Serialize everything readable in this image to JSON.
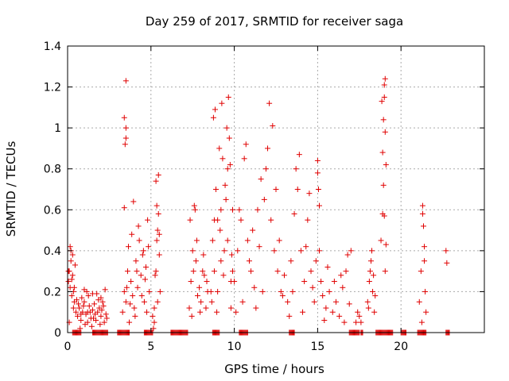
{
  "chart_data": {
    "type": "scatter",
    "title": "Day 259 of 2017, SRMTID for receiver saga",
    "xlabel": "GPS time / hours",
    "ylabel": "SRMTID / TECUs",
    "xlim": [
      0,
      25
    ],
    "ylim": [
      0,
      1.4
    ],
    "x_ticks": [
      "0",
      "5",
      "10",
      "15",
      "20"
    ],
    "y_ticks": [
      "0",
      "0.2",
      "0.4",
      "0.6",
      "0.8",
      "1",
      "1.2",
      "1.4"
    ],
    "grid": true,
    "marker": "+",
    "color": "#e00000",
    "series": [
      {
        "points": [
          [
            0.05,
            0.25
          ],
          [
            0.1,
            0.3
          ],
          [
            0.15,
            0.42
          ],
          [
            0.2,
            0.35
          ],
          [
            0.25,
            0.18
          ],
          [
            0.3,
            0.28
          ],
          [
            0.35,
            0.12
          ],
          [
            0.4,
            0.22
          ],
          [
            0.45,
            0.33
          ],
          [
            0.5,
            0.1
          ],
          [
            0.1,
            0.05
          ],
          [
            0.2,
            0.4
          ],
          [
            0.3,
            0.38
          ],
          [
            0.15,
            0.22
          ],
          [
            0.25,
            0.26
          ],
          [
            0.4,
            0.15
          ],
          [
            0.05,
            0.3
          ],
          [
            0.35,
            0.2
          ],
          [
            0.6,
            0.08
          ],
          [
            0.7,
            0.12
          ],
          [
            0.8,
            0.06
          ],
          [
            0.9,
            0.1
          ],
          [
            1.0,
            0.15
          ],
          [
            1.1,
            0.09
          ],
          [
            1.2,
            0.05
          ],
          [
            1.3,
            0.13
          ],
          [
            1.4,
            0.07
          ],
          [
            1.5,
            0.11
          ],
          [
            1.6,
            0.14
          ],
          [
            1.7,
            0.06
          ],
          [
            1.8,
            0.1
          ],
          [
            1.9,
            0.12
          ],
          [
            2.0,
            0.08
          ],
          [
            2.1,
            0.15
          ],
          [
            2.2,
            0.05
          ],
          [
            2.3,
            0.09
          ],
          [
            0.65,
            0.14
          ],
          [
            0.85,
            0.17
          ],
          [
            1.05,
            0.04
          ],
          [
            1.25,
            0.18
          ],
          [
            1.45,
            0.03
          ],
          [
            1.65,
            0.09
          ],
          [
            1.85,
            0.16
          ],
          [
            2.05,
            0.11
          ],
          [
            2.25,
            0.21
          ],
          [
            0.75,
            0.02
          ],
          [
            0.95,
            0.13
          ],
          [
            1.15,
            0.2
          ],
          [
            1.35,
            0.1
          ],
          [
            1.55,
            0.07
          ],
          [
            1.75,
            0.19
          ],
          [
            1.95,
            0.04
          ],
          [
            2.15,
            0.13
          ],
          [
            2.35,
            0.07
          ],
          [
            0.55,
            0.16
          ],
          [
            1.0,
            0.21
          ],
          [
            1.5,
            0.19
          ],
          [
            2.0,
            0.17
          ],
          [
            1.2,
            0.1
          ],
          [
            0.8,
            0.09
          ],
          [
            3.3,
            0.1
          ],
          [
            3.4,
            0.2
          ],
          [
            3.5,
            0.15
          ],
          [
            3.6,
            0.3
          ],
          [
            3.4,
            0.61
          ],
          [
            3.45,
            0.92
          ],
          [
            3.5,
            0.95
          ],
          [
            3.5,
            1.0
          ],
          [
            3.4,
            1.05
          ],
          [
            3.5,
            1.23
          ],
          [
            3.7,
            0.05
          ],
          [
            3.8,
            0.25
          ],
          [
            3.9,
            0.18
          ],
          [
            3.95,
            0.64
          ],
          [
            4.0,
            0.12
          ],
          [
            4.1,
            0.35
          ],
          [
            4.2,
            0.22
          ],
          [
            4.3,
            0.45
          ],
          [
            4.4,
            0.28
          ],
          [
            4.5,
            0.38
          ],
          [
            4.6,
            0.15
          ],
          [
            4.7,
            0.32
          ],
          [
            4.8,
            0.55
          ],
          [
            4.85,
            0.42
          ],
          [
            4.9,
            0.2
          ],
          [
            3.65,
            0.42
          ],
          [
            3.85,
            0.48
          ],
          [
            4.05,
            0.08
          ],
          [
            4.25,
            0.52
          ],
          [
            4.45,
            0.18
          ],
          [
            4.65,
            0.26
          ],
          [
            3.75,
            0.14
          ],
          [
            4.15,
            0.3
          ],
          [
            4.55,
            0.4
          ],
          [
            4.75,
            0.1
          ],
          [
            3.55,
            0.22
          ],
          [
            5.1,
            0.08
          ],
          [
            5.2,
            0.12
          ],
          [
            5.3,
            0.3
          ],
          [
            5.35,
            0.45
          ],
          [
            5.4,
            0.5
          ],
          [
            5.45,
            0.58
          ],
          [
            5.5,
            0.38
          ],
          [
            5.55,
            0.2
          ],
          [
            5.3,
            0.74
          ],
          [
            5.45,
            0.77
          ],
          [
            5.2,
            0.05
          ],
          [
            5.4,
            0.15
          ],
          [
            5.5,
            0.48
          ],
          [
            5.25,
            0.28
          ],
          [
            5.35,
            0.62
          ],
          [
            5.15,
            0.02
          ],
          [
            7.3,
            0.12
          ],
          [
            7.4,
            0.25
          ],
          [
            7.5,
            0.4
          ],
          [
            7.6,
            0.62
          ],
          [
            7.7,
            0.35
          ],
          [
            7.8,
            0.18
          ],
          [
            7.9,
            0.22
          ],
          [
            8.0,
            0.15
          ],
          [
            8.1,
            0.3
          ],
          [
            8.2,
            0.28
          ],
          [
            8.3,
            0.12
          ],
          [
            8.4,
            0.2
          ],
          [
            7.35,
            0.55
          ],
          [
            7.55,
            0.3
          ],
          [
            7.75,
            0.45
          ],
          [
            7.95,
            0.1
          ],
          [
            8.15,
            0.38
          ],
          [
            8.35,
            0.25
          ],
          [
            7.45,
            0.08
          ],
          [
            7.65,
            0.6
          ],
          [
            8.6,
            0.2
          ],
          [
            8.7,
            0.45
          ],
          [
            8.8,
            0.3
          ],
          [
            8.9,
            0.7
          ],
          [
            9.0,
            0.55
          ],
          [
            9.1,
            0.9
          ],
          [
            9.2,
            0.35
          ],
          [
            9.3,
            0.85
          ],
          [
            9.4,
            0.4
          ],
          [
            9.5,
            0.65
          ],
          [
            9.6,
            0.8
          ],
          [
            9.7,
            0.95
          ],
          [
            9.8,
            0.25
          ],
          [
            9.9,
            0.6
          ],
          [
            8.75,
            1.05
          ],
          [
            8.85,
            1.09
          ],
          [
            9.25,
            1.12
          ],
          [
            9.55,
            1.0
          ],
          [
            9.65,
            1.15
          ],
          [
            9.75,
            0.82
          ],
          [
            8.65,
            0.15
          ],
          [
            8.95,
            0.1
          ],
          [
            9.15,
            0.5
          ],
          [
            9.35,
            0.28
          ],
          [
            9.45,
            0.72
          ],
          [
            9.85,
            0.38
          ],
          [
            8.8,
            0.55
          ],
          [
            9.0,
            0.2
          ],
          [
            9.2,
            0.6
          ],
          [
            9.6,
            0.45
          ],
          [
            9.8,
            0.12
          ],
          [
            9.9,
            0.3
          ],
          [
            10.0,
            0.25
          ],
          [
            10.2,
            0.4
          ],
          [
            10.4,
            0.55
          ],
          [
            10.6,
            0.85
          ],
          [
            10.8,
            0.45
          ],
          [
            11.0,
            0.3
          ],
          [
            11.2,
            0.22
          ],
          [
            11.4,
            0.6
          ],
          [
            11.6,
            0.75
          ],
          [
            11.8,
            0.65
          ],
          [
            12.0,
            0.9
          ],
          [
            12.2,
            0.55
          ],
          [
            12.4,
            0.4
          ],
          [
            12.6,
            0.3
          ],
          [
            12.8,
            0.2
          ],
          [
            10.7,
            0.92
          ],
          [
            12.1,
            1.12
          ],
          [
            12.3,
            1.01
          ],
          [
            11.9,
            0.8
          ],
          [
            10.5,
            0.15
          ],
          [
            10.9,
            0.35
          ],
          [
            11.1,
            0.5
          ],
          [
            11.5,
            0.42
          ],
          [
            11.7,
            0.2
          ],
          [
            12.5,
            0.7
          ],
          [
            10.3,
            0.6
          ],
          [
            11.3,
            0.12
          ],
          [
            12.7,
            0.45
          ],
          [
            10.1,
            0.1
          ],
          [
            12.9,
            0.18
          ],
          [
            13.0,
            0.28
          ],
          [
            13.2,
            0.15
          ],
          [
            13.4,
            0.35
          ],
          [
            13.6,
            0.58
          ],
          [
            13.8,
            0.7
          ],
          [
            14.0,
            0.4
          ],
          [
            14.2,
            0.25
          ],
          [
            14.4,
            0.55
          ],
          [
            14.6,
            0.3
          ],
          [
            14.8,
            0.15
          ],
          [
            13.9,
            0.87
          ],
          [
            13.7,
            0.8
          ],
          [
            13.3,
            0.08
          ],
          [
            13.5,
            0.2
          ],
          [
            14.1,
            0.1
          ],
          [
            14.3,
            0.42
          ],
          [
            14.5,
            0.68
          ],
          [
            14.7,
            0.22
          ],
          [
            14.9,
            0.35
          ],
          [
            15.0,
            0.84
          ],
          [
            15.0,
            0.78
          ],
          [
            15.05,
            0.7
          ],
          [
            15.1,
            0.62
          ],
          [
            15.1,
            0.4
          ],
          [
            15.2,
            0.25
          ],
          [
            15.3,
            0.18
          ],
          [
            15.5,
            0.12
          ],
          [
            15.7,
            0.2
          ],
          [
            15.9,
            0.1
          ],
          [
            16.1,
            0.15
          ],
          [
            16.3,
            0.08
          ],
          [
            16.5,
            0.22
          ],
          [
            16.7,
            0.3
          ],
          [
            16.8,
            0.38
          ],
          [
            16.9,
            0.14
          ],
          [
            17.0,
            0.4
          ],
          [
            16.6,
            0.05
          ],
          [
            16.0,
            0.25
          ],
          [
            15.6,
            0.32
          ],
          [
            16.4,
            0.28
          ],
          [
            15.4,
            0.06
          ],
          [
            17.3,
            0.05
          ],
          [
            17.4,
            0.1
          ],
          [
            17.5,
            0.08
          ],
          [
            17.6,
            0.05
          ],
          [
            18.0,
            0.15
          ],
          [
            18.1,
            0.25
          ],
          [
            18.2,
            0.35
          ],
          [
            18.3,
            0.2
          ],
          [
            18.4,
            0.1
          ],
          [
            18.15,
            0.3
          ],
          [
            18.35,
            0.28
          ],
          [
            18.05,
            0.12
          ],
          [
            18.25,
            0.4
          ],
          [
            18.45,
            0.18
          ],
          [
            18.8,
            0.45
          ],
          [
            18.9,
            0.58
          ],
          [
            18.9,
            0.88
          ],
          [
            18.95,
            1.04
          ],
          [
            19.0,
            1.15
          ],
          [
            19.0,
            1.21
          ],
          [
            19.05,
            1.24
          ],
          [
            19.0,
            0.57
          ],
          [
            19.1,
            0.43
          ],
          [
            18.85,
            1.13
          ],
          [
            19.05,
            0.98
          ],
          [
            19.1,
            0.82
          ],
          [
            19.05,
            0.3
          ],
          [
            18.95,
            0.72
          ],
          [
            21.1,
            0.15
          ],
          [
            21.2,
            0.3
          ],
          [
            21.3,
            0.58
          ],
          [
            21.3,
            0.62
          ],
          [
            21.35,
            0.52
          ],
          [
            21.4,
            0.42
          ],
          [
            21.45,
            0.2
          ],
          [
            21.5,
            0.1
          ],
          [
            21.25,
            0.05
          ],
          [
            21.4,
            0.35
          ],
          [
            22.7,
            0.4
          ],
          [
            22.75,
            0.34
          ]
        ]
      }
    ],
    "zero_segments": [
      [
        0.3,
        0.8
      ],
      [
        1.5,
        2.4
      ],
      [
        3.0,
        3.7
      ],
      [
        4.6,
        5.1
      ],
      [
        6.2,
        7.2
      ],
      [
        8.7,
        9.1
      ],
      [
        10.3,
        10.8
      ],
      [
        13.3,
        13.6
      ],
      [
        16.9,
        17.5
      ],
      [
        17.6,
        17.7
      ],
      [
        18.5,
        19.5
      ],
      [
        20.0,
        20.3
      ],
      [
        21.0,
        21.5
      ],
      [
        22.7,
        22.9
      ]
    ]
  }
}
